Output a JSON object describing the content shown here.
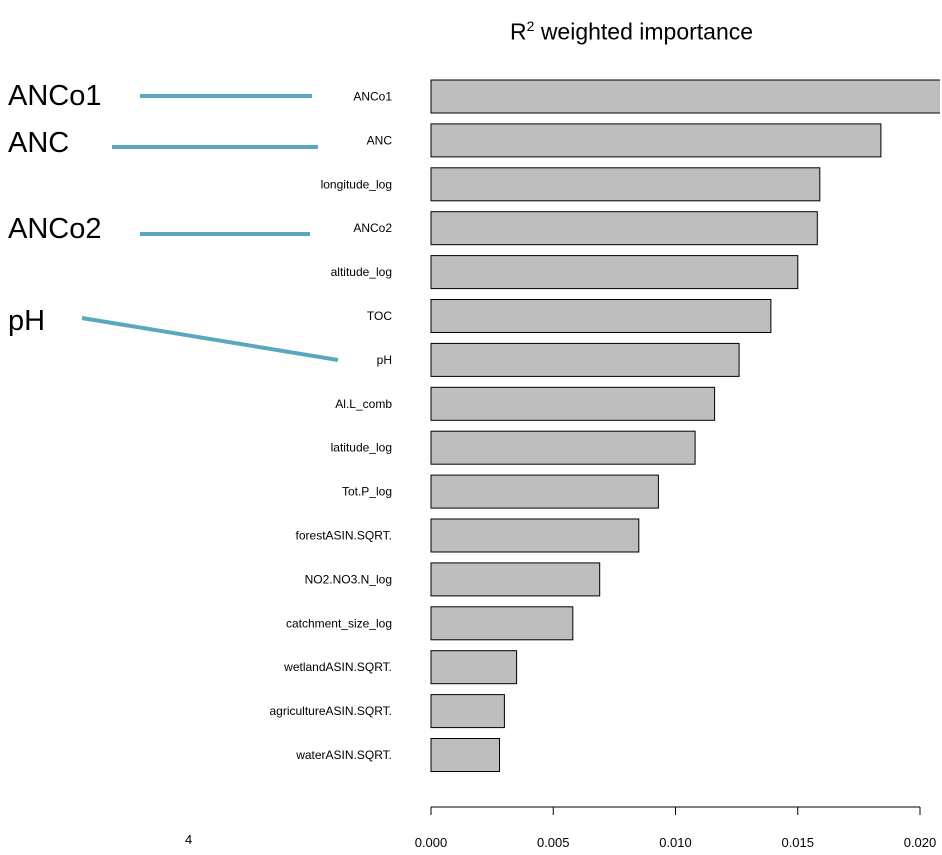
{
  "chart_data": {
    "type": "bar",
    "orientation": "horizontal",
    "title": "weighted importance",
    "title_symbol": "R",
    "title_superscript": "2",
    "categories": [
      "ANCo1",
      "ANC",
      "longitude_log",
      "ANCo2",
      "altitude_log",
      "TOC",
      "pH",
      "Al.L_comb",
      "latitude_log",
      "Tot.P_log",
      "forestASIN.SQRT.",
      "NO2.NO3.N_log",
      "catchment_size_log",
      "wetlandASIN.SQRT.",
      "agricultureASIN.SQRT.",
      "waterASIN.SQRT."
    ],
    "values": [
      0.0212,
      0.0184,
      0.0159,
      0.0158,
      0.015,
      0.0139,
      0.0126,
      0.0116,
      0.0108,
      0.0093,
      0.0085,
      0.0069,
      0.0058,
      0.0035,
      0.003,
      0.0028
    ],
    "xlim": [
      0,
      0.021
    ],
    "xticks": [
      "0.000",
      "0.005",
      "0.010",
      "0.015",
      "0.020"
    ],
    "xlabel": "",
    "ylabel": "",
    "grid": false,
    "bar_color": "#bebebe",
    "annotation_line_color": "#5aa8bd",
    "annotations": [
      {
        "text": "ANCo1",
        "target": "ANCo1"
      },
      {
        "text": "ANC",
        "target": "ANC"
      },
      {
        "text": "ANCo2",
        "target": "ANCo2"
      },
      {
        "text": "pH",
        "target": "pH"
      }
    ]
  },
  "fragment_text": "4"
}
